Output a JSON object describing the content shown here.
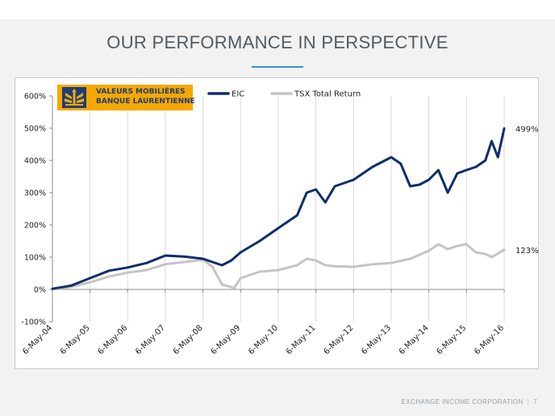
{
  "slide": {
    "title": "OUR PERFORMANCE IN PERSPECTIVE",
    "footer_company": "EXCHANGE INCOME CORPORATION",
    "footer_separator": "|",
    "page_number": "7"
  },
  "logo": {
    "line1": "VALEURS MOBILIÈRES",
    "line2": "BANQUE LAURENTIENNE",
    "icon": "laurentian-bank-tree-logo-icon"
  },
  "colors": {
    "eic": "#0f2d6b",
    "tsx": "#c4c4c4",
    "logo_bg": "#f5a800",
    "accent": "#3a8fd0"
  },
  "chart_data": {
    "type": "line",
    "ylim": [
      -100,
      600
    ],
    "y_ticks": [
      -100,
      0,
      100,
      200,
      300,
      400,
      500,
      600
    ],
    "y_tick_labels": [
      "-100%",
      "0%",
      "100%",
      "200%",
      "300%",
      "400%",
      "500%",
      "600%"
    ],
    "x_ticks": [
      "6-May-04",
      "6-May-05",
      "6-May-06",
      "6-May-07",
      "6-May-08",
      "6-May-09",
      "6-May-10",
      "6-May-11",
      "6-May-12",
      "6-May-13",
      "6-May-14",
      "6-May-15",
      "6-May-16"
    ],
    "xlim": [
      "6-May-04",
      "6-May-16"
    ],
    "legend_position": "top-center",
    "grid": "vertical",
    "series": [
      {
        "name": "EIC",
        "end_label": "499%",
        "points": [
          [
            "6-May-04",
            2
          ],
          [
            "6-Nov-04",
            12
          ],
          [
            "6-May-05",
            35
          ],
          [
            "6-Nov-05",
            58
          ],
          [
            "6-May-06",
            68
          ],
          [
            "6-Nov-06",
            82
          ],
          [
            "6-May-07",
            105
          ],
          [
            "6-Nov-07",
            102
          ],
          [
            "6-May-08",
            95
          ],
          [
            "6-Nov-08",
            75
          ],
          [
            "6-Feb-09",
            90
          ],
          [
            "6-May-09",
            115
          ],
          [
            "6-Nov-09",
            150
          ],
          [
            "6-May-10",
            190
          ],
          [
            "6-Nov-10",
            230
          ],
          [
            "6-Feb-11",
            300
          ],
          [
            "6-May-11",
            310
          ],
          [
            "6-Aug-11",
            270
          ],
          [
            "6-Nov-11",
            320
          ],
          [
            "6-May-12",
            340
          ],
          [
            "6-Nov-12",
            380
          ],
          [
            "6-May-13",
            410
          ],
          [
            "6-Aug-13",
            390
          ],
          [
            "6-Nov-13",
            320
          ],
          [
            "6-Feb-14",
            325
          ],
          [
            "6-May-14",
            340
          ],
          [
            "6-Aug-14",
            370
          ],
          [
            "6-Nov-14",
            300
          ],
          [
            "6-Feb-15",
            360
          ],
          [
            "6-May-15",
            370
          ],
          [
            "6-Aug-15",
            380
          ],
          [
            "6-Nov-15",
            400
          ],
          [
            "6-Jan-16",
            460
          ],
          [
            "6-Mar-16",
            410
          ],
          [
            "6-May-16",
            499
          ]
        ]
      },
      {
        "name": "TSX Total Return",
        "end_label": "123%",
        "points": [
          [
            "6-May-04",
            0
          ],
          [
            "6-Nov-04",
            8
          ],
          [
            "6-May-05",
            22
          ],
          [
            "6-Nov-05",
            40
          ],
          [
            "6-May-06",
            52
          ],
          [
            "6-Nov-06",
            60
          ],
          [
            "6-May-07",
            78
          ],
          [
            "6-Nov-07",
            85
          ],
          [
            "6-May-08",
            92
          ],
          [
            "6-Aug-08",
            70
          ],
          [
            "6-Nov-08",
            15
          ],
          [
            "6-Mar-09",
            5
          ],
          [
            "6-May-09",
            35
          ],
          [
            "6-Nov-09",
            55
          ],
          [
            "6-May-10",
            60
          ],
          [
            "6-Nov-10",
            75
          ],
          [
            "6-Feb-11",
            95
          ],
          [
            "6-May-11",
            90
          ],
          [
            "6-Aug-11",
            75
          ],
          [
            "6-Nov-11",
            72
          ],
          [
            "6-May-12",
            70
          ],
          [
            "6-Nov-12",
            78
          ],
          [
            "6-May-13",
            82
          ],
          [
            "6-Nov-13",
            95
          ],
          [
            "6-May-14",
            120
          ],
          [
            "6-Aug-14",
            140
          ],
          [
            "6-Nov-14",
            125
          ],
          [
            "6-Feb-15",
            135
          ],
          [
            "6-May-15",
            140
          ],
          [
            "6-Aug-15",
            115
          ],
          [
            "6-Nov-15",
            110
          ],
          [
            "6-Jan-16",
            100
          ],
          [
            "6-May-16",
            123
          ]
        ]
      }
    ]
  }
}
